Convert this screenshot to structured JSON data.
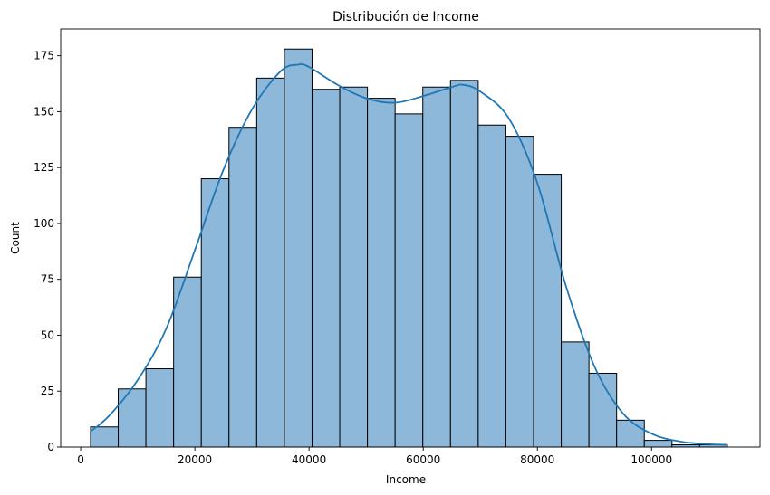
{
  "chart_data": {
    "type": "bar",
    "subtype": "histogram-with-kde",
    "title": "Distribución de Income",
    "xlabel": "Income",
    "ylabel": "Count",
    "xlim": [
      -3500,
      119000
    ],
    "ylim": [
      0,
      187
    ],
    "xticks": [
      0,
      20000,
      40000,
      60000,
      80000,
      100000
    ],
    "yticks": [
      0,
      25,
      50,
      75,
      100,
      125,
      150,
      175
    ],
    "grid": false,
    "bins": [
      {
        "x0": 1730,
        "x1": 6580,
        "count": 9
      },
      {
        "x0": 6580,
        "x1": 11430,
        "count": 26
      },
      {
        "x0": 11430,
        "x1": 16280,
        "count": 35
      },
      {
        "x0": 16280,
        "x1": 21130,
        "count": 76
      },
      {
        "x0": 21130,
        "x1": 25980,
        "count": 120
      },
      {
        "x0": 25980,
        "x1": 30830,
        "count": 143
      },
      {
        "x0": 30830,
        "x1": 35680,
        "count": 165
      },
      {
        "x0": 35680,
        "x1": 40530,
        "count": 178
      },
      {
        "x0": 40530,
        "x1": 45380,
        "count": 160
      },
      {
        "x0": 45380,
        "x1": 50230,
        "count": 161
      },
      {
        "x0": 50230,
        "x1": 55080,
        "count": 156
      },
      {
        "x0": 55080,
        "x1": 59930,
        "count": 149
      },
      {
        "x0": 59930,
        "x1": 64780,
        "count": 161
      },
      {
        "x0": 64780,
        "x1": 69630,
        "count": 164
      },
      {
        "x0": 69630,
        "x1": 74480,
        "count": 144
      },
      {
        "x0": 74480,
        "x1": 79330,
        "count": 139
      },
      {
        "x0": 79330,
        "x1": 84180,
        "count": 122
      },
      {
        "x0": 84180,
        "x1": 89030,
        "count": 47
      },
      {
        "x0": 89030,
        "x1": 93880,
        "count": 33
      },
      {
        "x0": 93880,
        "x1": 98730,
        "count": 12
      },
      {
        "x0": 98730,
        "x1": 103580,
        "count": 3
      },
      {
        "x0": 103580,
        "x1": 108430,
        "count": 1
      },
      {
        "x0": 108430,
        "x1": 113280,
        "count": 1
      }
    ],
    "kde": {
      "x": [
        1730,
        5000,
        10000,
        15000,
        20000,
        25000,
        30000,
        35000,
        38000,
        40000,
        45000,
        50000,
        55000,
        60000,
        65000,
        67000,
        70000,
        75000,
        80000,
        85000,
        90000,
        95000,
        100000,
        105000,
        110000,
        113280
      ],
      "y": [
        7,
        14,
        30,
        53,
        88,
        124,
        151,
        168,
        171,
        170,
        162,
        156,
        154,
        157,
        161,
        162,
        159,
        147,
        118,
        72,
        36,
        15,
        6,
        2.5,
        1.3,
        1
      ]
    },
    "colors": {
      "bar_fill": "#8db8da",
      "bar_edge": "#000000",
      "kde_line": "#1f77b4"
    }
  }
}
